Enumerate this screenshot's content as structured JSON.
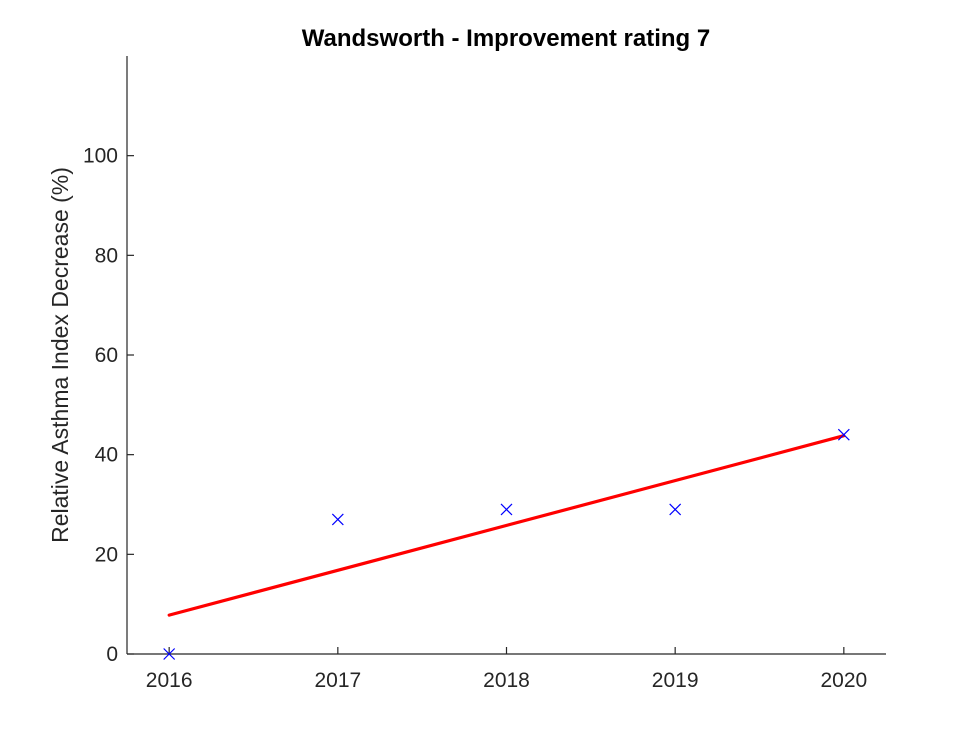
{
  "chart_data": {
    "type": "scatter",
    "title": "Wandsworth - Improvement rating 7",
    "xlabel": "",
    "ylabel": "Relative Asthma Index Decrease (%)",
    "xlim": [
      2015.75,
      2020.25
    ],
    "ylim": [
      0,
      120
    ],
    "xticks": [
      2016,
      2017,
      2018,
      2019,
      2020
    ],
    "yticks": [
      0,
      20,
      40,
      60,
      80,
      100
    ],
    "grid": false,
    "series": [
      {
        "kind": "points",
        "marker": "x",
        "color": "#0000ff",
        "x": [
          2016,
          2017,
          2018,
          2019,
          2020
        ],
        "y": [
          0,
          27,
          29,
          29,
          44
        ]
      },
      {
        "kind": "fit-line",
        "color": "#ff0000",
        "x": [
          2016,
          2020
        ],
        "y": [
          7.8,
          43.8
        ]
      }
    ]
  }
}
